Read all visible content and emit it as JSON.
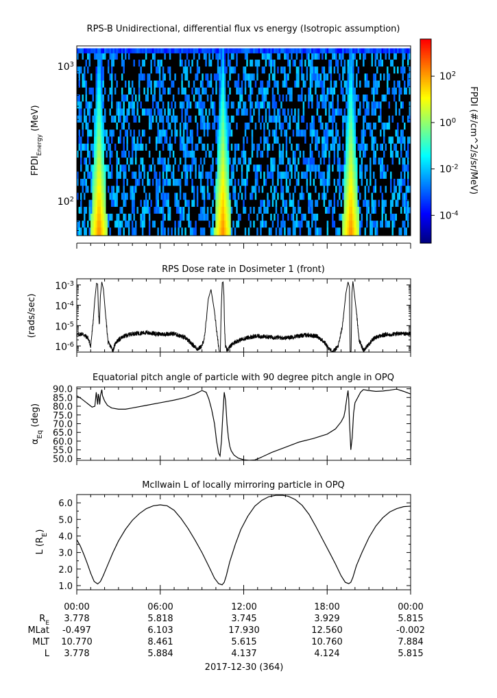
{
  "colors": {
    "background": "#ffffff",
    "axis": "#000000",
    "line": "#000000",
    "colormap": [
      "#00007f",
      "#0000ff",
      "#0080ff",
      "#00ffff",
      "#80ff80",
      "#ffff00",
      "#ff8000",
      "#ff0000"
    ]
  },
  "chart_data": [
    {
      "type": "heatmap",
      "title": "RPS-B  Unidirectional, differential flux vs energy (Isotropic assumption)",
      "ylabel": "FPDI",
      "ylabel_sub": "Energy",
      "ylabel_unit": "(MeV)",
      "y_scale": "log",
      "ylim": [
        55,
        1400
      ],
      "yticks": [
        {
          "value": 100,
          "label": "10",
          "exp": "2"
        },
        {
          "value": 1000,
          "label": "10",
          "exp": "3"
        }
      ],
      "x_hours": [
        0,
        24
      ],
      "energies_mev": [
        60,
        67,
        76,
        85,
        96,
        108,
        122,
        137,
        155,
        175,
        197,
        222,
        250,
        282,
        318,
        358,
        404,
        455,
        513,
        578,
        651,
        734,
        827,
        932,
        1050,
        1180,
        1300
      ],
      "belt_peaks_hours": [
        1.6,
        10.5,
        19.7
      ],
      "colorbar": {
        "label": "FPDI (#/cm^2/s/sr/MeV)",
        "log_range": [
          -5.2,
          3.6
        ],
        "ticks": [
          {
            "label": "10",
            "exp": "2",
            "log": 2
          },
          {
            "label": "10",
            "exp": "0",
            "log": 0
          },
          {
            "label": "10",
            "exp": "-2",
            "log": -2
          },
          {
            "label": "10",
            "exp": "-4",
            "log": -4
          }
        ]
      }
    },
    {
      "type": "line",
      "title": "RPS  Dose rate in Dosimeter 1 (front)",
      "ylabel": "(rads/sec)",
      "y_scale": "log",
      "ylim": [
        5e-07,
        0.002
      ],
      "yticks": [
        {
          "value": 0.001,
          "label": "10",
          "exp": "-3"
        },
        {
          "value": 0.0001,
          "label": "10",
          "exp": "-4"
        },
        {
          "value": 1e-05,
          "label": "10",
          "exp": "-5"
        },
        {
          "value": 1e-06,
          "label": "10",
          "exp": "-6"
        }
      ],
      "x_hours": [
        0,
        0.4,
        0.8,
        1.0,
        1.15,
        1.3,
        1.42,
        1.5,
        1.56,
        1.62,
        1.7,
        1.8,
        1.92,
        2.05,
        2.25,
        2.5,
        2.6,
        2.8,
        3.1,
        3.4,
        4.0,
        5.0,
        6.0,
        7.0,
        7.8,
        8.3,
        8.7,
        9.0,
        9.2,
        9.45,
        9.65,
        9.9,
        10.1,
        10.25,
        10.32,
        10.38,
        10.46,
        10.52,
        10.58,
        10.62,
        10.68,
        10.8,
        11.0,
        11.3,
        11.6,
        12.2,
        13.0,
        14.0,
        15.0,
        16.5,
        17.3,
        17.8,
        18.1,
        18.4,
        18.8,
        19.1,
        19.35,
        19.5,
        19.6,
        19.65,
        19.72,
        19.78,
        19.85,
        19.92,
        20.1,
        20.3,
        20.6,
        21.0,
        21.3,
        21.7,
        22.2,
        23.0,
        24.0
      ],
      "values": [
        3.5e-06,
        4e-06,
        2.5e-06,
        1e-06,
        1e-05,
        0.0002,
        0.0012,
        0.0011,
        5e-05,
        1e-05,
        0.0003,
        0.0014,
        0.0006,
        5e-05,
        1.5e-06,
        8e-07,
        6e-07,
        1.5e-06,
        2.2e-06,
        3e-06,
        4e-06,
        4.5e-06,
        3.8e-06,
        4e-06,
        2.5e-06,
        1.2e-06,
        7e-07,
        1e-06,
        3e-06,
        0.0002,
        0.0006,
        5e-05,
        3e-06,
        5e-07,
        5e-07,
        6e-05,
        0.0013,
        0.0014,
        0.0003,
        1e-05,
        1e-06,
        6e-07,
        9e-07,
        1.5e-06,
        1.8e-06,
        2.5e-06,
        3e-06,
        2.7e-06,
        2.5e-06,
        3.5e-06,
        3e-06,
        1.5e-06,
        8e-07,
        5e-07,
        1e-06,
        1e-05,
        0.0004,
        0.0014,
        0.0008,
        5e-07,
        5e-07,
        0.0004,
        0.0015,
        0.0006,
        5e-05,
        2e-06,
        6e-07,
        1.2e-06,
        2.2e-06,
        3e-06,
        3.5e-06,
        4e-06,
        4e-06
      ]
    },
    {
      "type": "line",
      "title": "Equatorial pitch angle of particle with 90 degree pitch angle in OPQ",
      "ylabel": "α",
      "ylabel_sub": "Eq",
      "ylabel_unit": "(deg)",
      "ylim": [
        49,
        91
      ],
      "yticks": [
        90,
        85,
        80,
        75,
        70,
        65,
        60,
        55,
        50
      ],
      "x_hours": [
        0,
        0.3,
        0.7,
        1.1,
        1.3,
        1.4,
        1.5,
        1.55,
        1.6,
        1.65,
        1.7,
        1.8,
        1.85,
        2.0,
        2.2,
        2.5,
        3.0,
        3.5,
        4.0,
        5.0,
        6.0,
        7.0,
        7.8,
        8.5,
        9.0,
        9.3,
        9.5,
        9.7,
        9.9,
        10.05,
        10.2,
        10.3,
        10.4,
        10.5,
        10.6,
        10.7,
        10.8,
        10.9,
        11.0,
        11.1,
        11.3,
        11.6,
        12.0,
        12.4,
        12.8,
        13.2,
        13.6,
        14.0,
        15.0,
        16.0,
        17.0,
        18.0,
        18.6,
        19.0,
        19.2,
        19.3,
        19.4,
        19.5,
        19.55,
        19.6,
        19.7,
        19.8,
        19.9,
        20.0,
        20.2,
        20.4,
        20.6,
        21.0,
        21.5,
        22.0,
        22.5,
        23.0,
        23.5,
        24.0
      ],
      "values": [
        86,
        84.5,
        82,
        79.5,
        80,
        88,
        81,
        87,
        85,
        81,
        86,
        89.5,
        86,
        83,
        80.5,
        79,
        78.3,
        78.3,
        79,
        80.5,
        82,
        83.5,
        85,
        87,
        89,
        88,
        84,
        78,
        70,
        60,
        53,
        51.5,
        60,
        75,
        88,
        83,
        70,
        62,
        57,
        54.5,
        52,
        50.3,
        49.3,
        49,
        49.2,
        50.5,
        52,
        53.5,
        56.5,
        59.5,
        61.5,
        64,
        67,
        71,
        74,
        78,
        84,
        89,
        84,
        72,
        55,
        62,
        76,
        82,
        85,
        88,
        89.5,
        89,
        88.5,
        88.7,
        89.2,
        89.8,
        88.5,
        87
      ]
    },
    {
      "type": "line",
      "title": "McIlwain L of locally mirroring particle in OPQ",
      "ylabel": "L (R",
      "ylabel_sub": "E",
      "ylabel_unit": ")",
      "ylim": [
        0.75,
        6.5
      ],
      "yticks": [
        6,
        5,
        4,
        3,
        2,
        1
      ],
      "x_hours": [
        0,
        0.25,
        0.5,
        0.75,
        1.0,
        1.25,
        1.5,
        1.7,
        1.9,
        2.2,
        2.6,
        3.0,
        3.5,
        4.0,
        4.5,
        5.0,
        5.5,
        6.0,
        6.5,
        7.0,
        7.5,
        8.0,
        8.5,
        9.0,
        9.5,
        9.9,
        10.2,
        10.45,
        10.6,
        10.75,
        11.0,
        11.4,
        11.8,
        12.3,
        12.8,
        13.3,
        13.8,
        14.3,
        14.8,
        15.2,
        15.7,
        16.2,
        16.7,
        17.2,
        17.7,
        18.2,
        18.6,
        19.0,
        19.3,
        19.55,
        19.7,
        19.85,
        20.1,
        20.5,
        21.0,
        21.5,
        22.0,
        22.5,
        23.0,
        23.5,
        24.0
      ],
      "values": [
        3.78,
        3.4,
        2.9,
        2.35,
        1.75,
        1.25,
        1.1,
        1.25,
        1.6,
        2.2,
        3.0,
        3.7,
        4.4,
        4.95,
        5.35,
        5.65,
        5.82,
        5.88,
        5.82,
        5.55,
        5.05,
        4.45,
        3.75,
        3.0,
        2.15,
        1.45,
        1.12,
        1.05,
        1.2,
        1.6,
        2.45,
        3.5,
        4.4,
        5.2,
        5.8,
        6.15,
        6.37,
        6.45,
        6.45,
        6.4,
        6.2,
        5.85,
        5.3,
        4.55,
        3.75,
        2.95,
        2.3,
        1.6,
        1.2,
        1.12,
        1.2,
        1.5,
        2.2,
        3.0,
        3.9,
        4.6,
        5.1,
        5.45,
        5.65,
        5.77,
        5.8
      ]
    }
  ],
  "x_axis": {
    "tick_labels": [
      "00:00",
      "06:00",
      "12:00",
      "18:00",
      "00:00"
    ],
    "date_label": "2017-12-30 (364)",
    "ephemeris": [
      {
        "label": "R",
        "sub": "E",
        "values": [
          "3.778",
          "5.818",
          "3.745",
          "3.929",
          "5.815"
        ]
      },
      {
        "label": "MLat",
        "sub": "",
        "values": [
          "-0.497",
          "6.103",
          "17.930",
          "12.560",
          "-0.002"
        ]
      },
      {
        "label": "MLT",
        "sub": "",
        "values": [
          "10.770",
          "8.461",
          "5.615",
          "10.760",
          "7.884"
        ]
      },
      {
        "label": "L",
        "sub": "",
        "values": [
          "3.778",
          "5.884",
          "4.137",
          "4.124",
          "5.815"
        ]
      }
    ]
  }
}
